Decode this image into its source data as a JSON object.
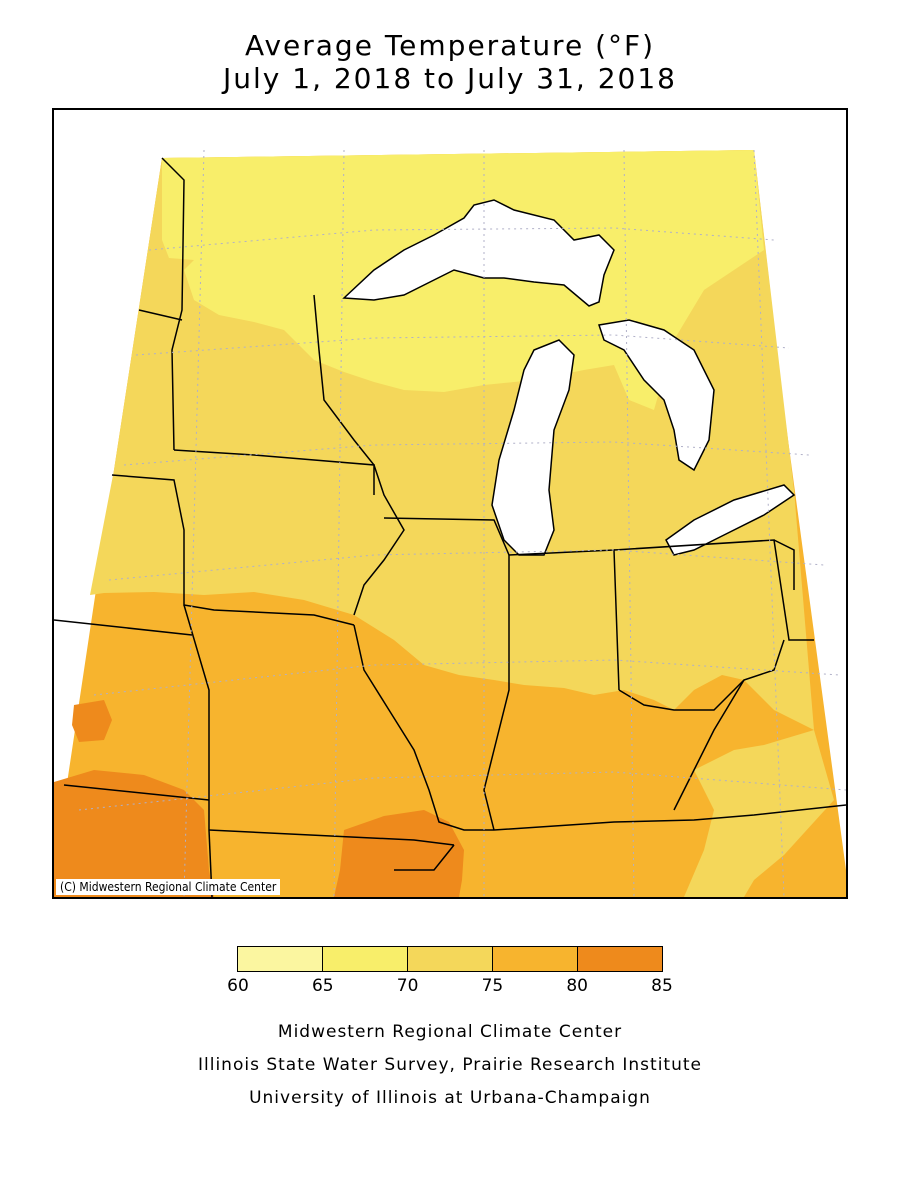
{
  "title": {
    "line1": "Average Temperature (°F)",
    "line2": "July 1, 2018 to July 31, 2018"
  },
  "map": {
    "copyright": "(C) Midwestern Regional Climate Center",
    "zones": [
      {
        "id": "65-70",
        "color": "#f8ee6a"
      },
      {
        "id": "70-75",
        "color": "#f4d75a"
      },
      {
        "id": "75-80",
        "color": "#f7b42e"
      },
      {
        "id": "80-85",
        "color": "#ee8a1c"
      }
    ],
    "water_color": "#ffffff",
    "grid_color": "#b0b0c8"
  },
  "legend": {
    "bins": [
      {
        "from": 60,
        "to": 65,
        "color": "#fbf6a0"
      },
      {
        "from": 65,
        "to": 70,
        "color": "#f8ee6a"
      },
      {
        "from": 70,
        "to": 75,
        "color": "#f4d75a"
      },
      {
        "from": 75,
        "to": 80,
        "color": "#f7b42e"
      },
      {
        "from": 80,
        "to": 85,
        "color": "#ee8a1c"
      }
    ],
    "ticks": [
      "60",
      "65",
      "70",
      "75",
      "80",
      "85"
    ]
  },
  "credits": {
    "line1": "Midwestern Regional Climate Center",
    "line2": "Illinois State Water Survey, Prairie Research Institute",
    "line3": "University of Illinois at Urbana-Champaign"
  }
}
